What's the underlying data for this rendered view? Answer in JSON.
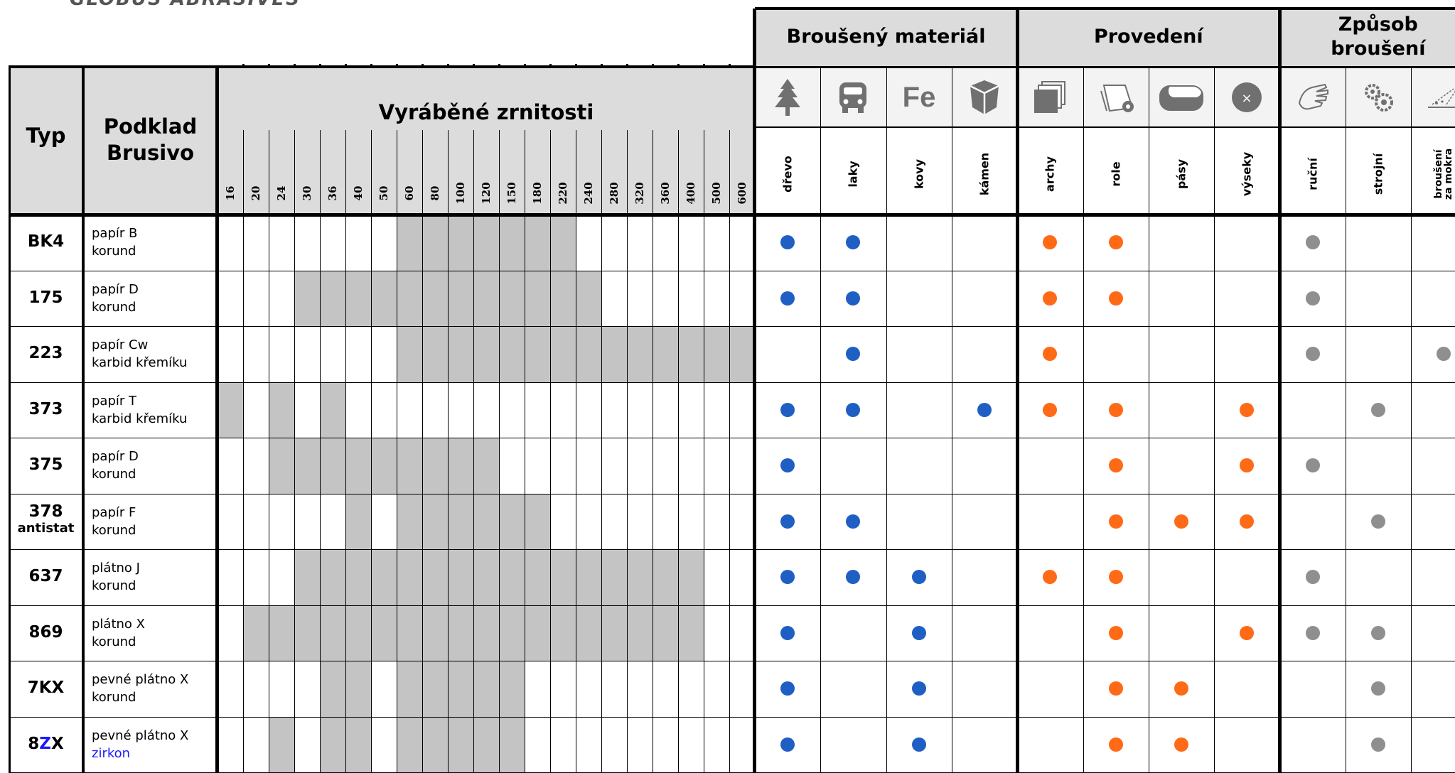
{
  "brand": "GLOBUS ABRASIVES",
  "headers": {
    "typ": "Typ",
    "podklad": "Podklad",
    "brusivo": "Brusivo",
    "zrnitosti": "Vyráběné zrnitosti",
    "material": "Broušený materiál",
    "provedeni": "Provedení",
    "zpusob_1": "Způsob",
    "zpusob_2": "broušení"
  },
  "grits": [
    "16",
    "20",
    "24",
    "30",
    "36",
    "40",
    "50",
    "60",
    "80",
    "100",
    "120",
    "150",
    "180",
    "220",
    "240",
    "280",
    "320",
    "360",
    "400",
    "500",
    "600"
  ],
  "columns": [
    {
      "label": "dřevo",
      "icon": "tree-icon",
      "group": "material"
    },
    {
      "label": "laky",
      "icon": "vehicle-icon",
      "group": "material"
    },
    {
      "label": "kovy",
      "icon": "fe-icon",
      "icon_text": "Fe",
      "group": "material"
    },
    {
      "label": "kámen",
      "icon": "stone-icon",
      "group": "material"
    },
    {
      "label": "archy",
      "icon": "sheets-icon",
      "group": "provedeni"
    },
    {
      "label": "role",
      "icon": "roll-icon",
      "group": "provedeni"
    },
    {
      "label": "pásy",
      "icon": "belt-icon",
      "group": "provedeni"
    },
    {
      "label": "výseky",
      "icon": "disc-icon",
      "group": "provedeni"
    },
    {
      "label": "ruční",
      "icon": "hand-icon",
      "group": "zpusob"
    },
    {
      "label": "strojní",
      "icon": "gears-icon",
      "group": "zpusob"
    },
    {
      "label": "broušení za mokra",
      "label_1": "broušení",
      "label_2": "za mokra",
      "icon": "wet-icon",
      "group": "zpusob"
    }
  ],
  "colors": {
    "material": "#1f5fc4",
    "provedeni": "#ff6a16",
    "zpusob": "#8f8f8f",
    "grit_fill": "#c4c4c4",
    "header_fill": "#dcdcdc"
  },
  "rows": [
    {
      "typ": "BK4",
      "typ2": "",
      "podklad": "papír B",
      "brusivo": "korund",
      "grits": [
        0,
        0,
        0,
        0,
        0,
        0,
        0,
        1,
        1,
        1,
        1,
        1,
        1,
        1,
        0,
        0,
        0,
        0,
        0,
        0,
        0
      ],
      "marks": [
        1,
        1,
        0,
        0,
        1,
        1,
        0,
        0,
        1,
        0,
        0
      ]
    },
    {
      "typ": "175",
      "typ2": "",
      "podklad": "papír D",
      "brusivo": "korund",
      "grits": [
        0,
        0,
        0,
        1,
        1,
        1,
        1,
        1,
        1,
        1,
        1,
        1,
        1,
        1,
        1,
        0,
        0,
        0,
        0,
        0,
        0
      ],
      "marks": [
        1,
        1,
        0,
        0,
        1,
        1,
        0,
        0,
        1,
        0,
        0
      ]
    },
    {
      "typ": "223",
      "typ2": "",
      "podklad": "papír Cw",
      "brusivo": "karbid křemíku",
      "grits": [
        0,
        0,
        0,
        0,
        0,
        0,
        0,
        1,
        1,
        1,
        1,
        1,
        1,
        1,
        1,
        1,
        1,
        1,
        1,
        1,
        1
      ],
      "marks": [
        0,
        1,
        0,
        0,
        1,
        0,
        0,
        0,
        1,
        0,
        1
      ]
    },
    {
      "typ": "373",
      "typ2": "",
      "podklad": "papír T",
      "brusivo": "karbid křemíku",
      "grits": [
        1,
        0,
        1,
        0,
        1,
        0,
        0,
        0,
        0,
        0,
        0,
        0,
        0,
        0,
        0,
        0,
        0,
        0,
        0,
        0,
        0
      ],
      "marks": [
        1,
        1,
        0,
        1,
        1,
        1,
        0,
        1,
        0,
        1,
        0
      ]
    },
    {
      "typ": "375",
      "typ2": "",
      "podklad": "papír D",
      "brusivo": "korund",
      "grits": [
        0,
        0,
        1,
        1,
        1,
        1,
        1,
        1,
        1,
        1,
        1,
        0,
        0,
        0,
        0,
        0,
        0,
        0,
        0,
        0,
        0
      ],
      "marks": [
        1,
        0,
        0,
        0,
        0,
        1,
        0,
        1,
        1,
        0,
        0
      ]
    },
    {
      "typ": "378",
      "typ2": "antistat",
      "podklad": "papír F",
      "brusivo": "korund",
      "grits": [
        0,
        0,
        0,
        0,
        0,
        1,
        0,
        1,
        1,
        1,
        1,
        1,
        1,
        0,
        0,
        0,
        0,
        0,
        0,
        0,
        0
      ],
      "marks": [
        1,
        1,
        0,
        0,
        0,
        1,
        1,
        1,
        0,
        1,
        0
      ]
    },
    {
      "typ": "637",
      "typ2": "",
      "podklad": "plátno J",
      "brusivo": "korund",
      "grits": [
        0,
        0,
        0,
        1,
        1,
        1,
        1,
        1,
        1,
        1,
        1,
        1,
        1,
        1,
        1,
        1,
        1,
        1,
        1,
        0,
        0
      ],
      "marks": [
        1,
        1,
        1,
        0,
        1,
        1,
        0,
        0,
        1,
        0,
        0
      ]
    },
    {
      "typ": "869",
      "typ2": "",
      "podklad": "plátno X",
      "brusivo": "korund",
      "grits": [
        0,
        1,
        1,
        1,
        1,
        1,
        1,
        1,
        1,
        1,
        1,
        1,
        1,
        1,
        1,
        1,
        1,
        1,
        1,
        0,
        0
      ],
      "marks": [
        1,
        0,
        1,
        0,
        0,
        1,
        0,
        1,
        1,
        1,
        0
      ]
    },
    {
      "typ": "7KX",
      "typ2": "",
      "podklad": "pevné plátno X",
      "brusivo": "korund",
      "grits": [
        0,
        0,
        0,
        0,
        1,
        1,
        0,
        1,
        1,
        1,
        1,
        1,
        0,
        0,
        0,
        0,
        0,
        0,
        0,
        0,
        0
      ],
      "marks": [
        1,
        0,
        1,
        0,
        0,
        1,
        1,
        0,
        0,
        1,
        0
      ]
    },
    {
      "typ": "8ZX",
      "typ_a": "8",
      "typ_b": "Z",
      "typ_c": "X",
      "typ2": "",
      "podklad": "pevné plátno X",
      "brusivo": "zirkon",
      "brusivo_color": "#1a1aff",
      "grits": [
        0,
        0,
        1,
        0,
        1,
        1,
        0,
        1,
        1,
        1,
        1,
        1,
        0,
        0,
        0,
        0,
        0,
        0,
        0,
        0,
        0
      ],
      "marks": [
        1,
        0,
        1,
        0,
        0,
        1,
        1,
        0,
        0,
        1,
        0
      ]
    }
  ]
}
